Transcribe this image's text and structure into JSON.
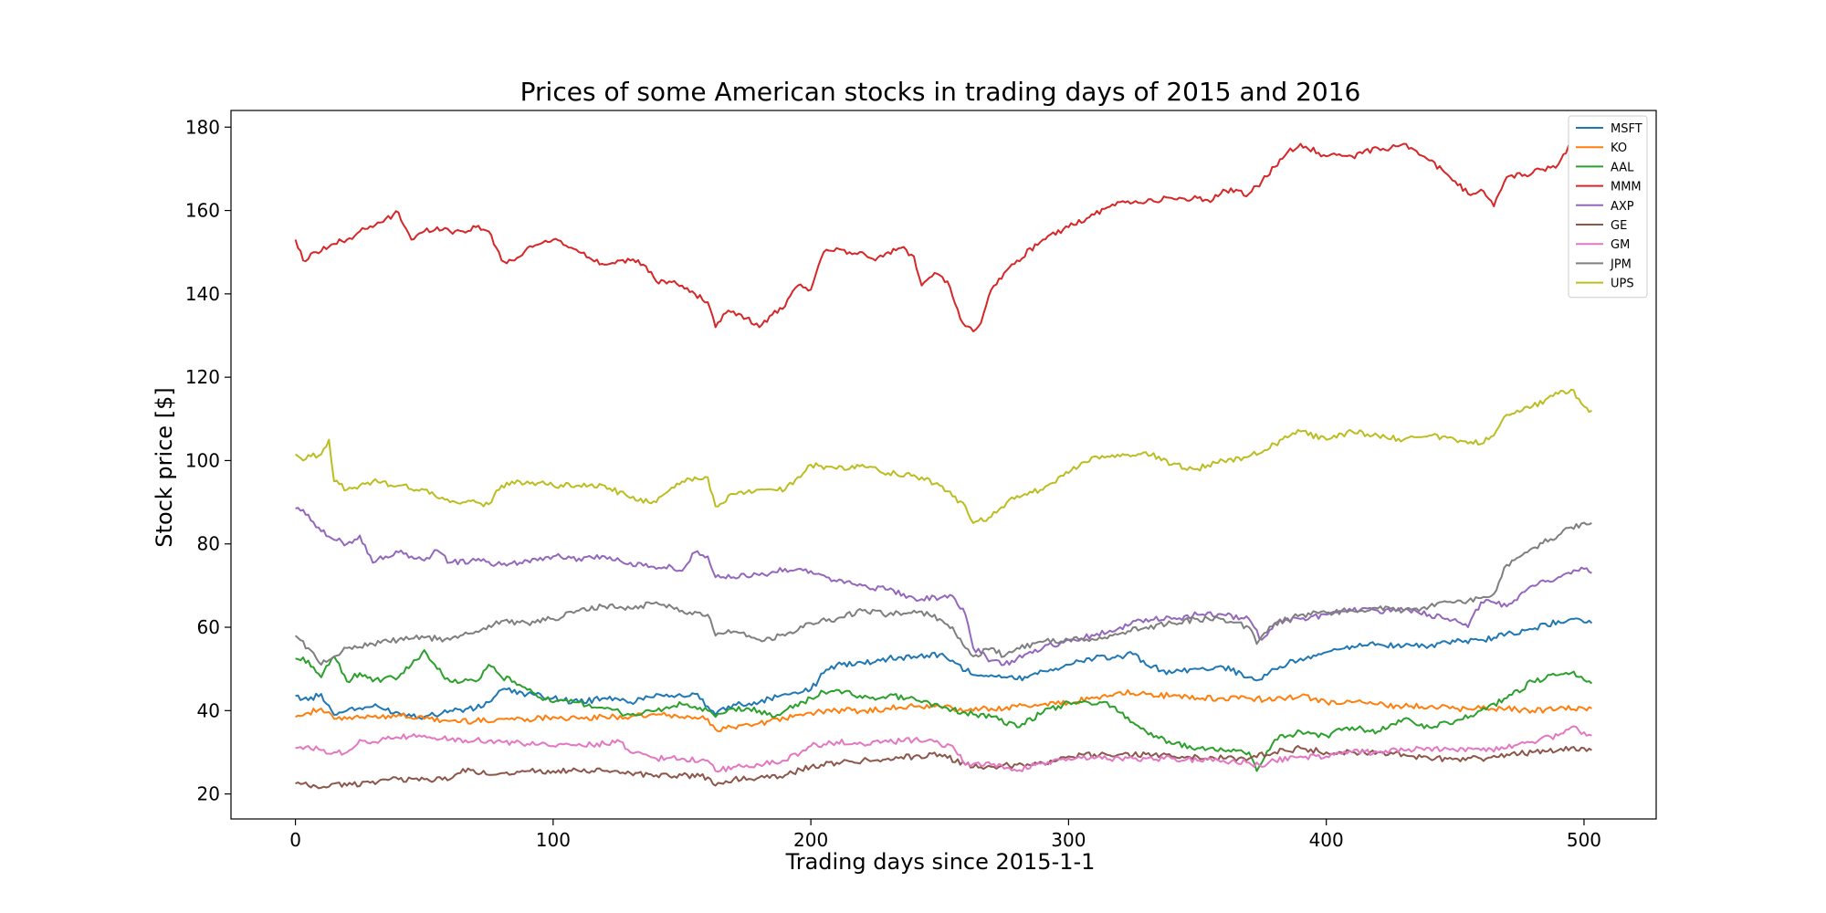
{
  "chart_data": {
    "type": "line",
    "title": "Prices of some American stocks in trading days of 2015 and 2016",
    "xlabel": "Trading days since 2015-1-1",
    "ylabel": "Stock price [$]",
    "xlim": [
      -25,
      528
    ],
    "ylim": [
      14,
      184
    ],
    "xticks": [
      0,
      100,
      200,
      300,
      400,
      500
    ],
    "yticks": [
      20,
      40,
      60,
      80,
      100,
      120,
      140,
      160,
      180
    ],
    "grid": false,
    "legend_position": "top-right",
    "series": [
      {
        "name": "MSFT",
        "color": "#1f77b4",
        "x": [
          0,
          5,
          10,
          15,
          20,
          30,
          40,
          50,
          60,
          70,
          75,
          80,
          90,
          100,
          110,
          120,
          130,
          140,
          150,
          155,
          160,
          163,
          170,
          180,
          190,
          200,
          205,
          210,
          220,
          230,
          240,
          250,
          255,
          260,
          270,
          280,
          290,
          300,
          310,
          320,
          325,
          330,
          340,
          350,
          360,
          370,
          375,
          380,
          390,
          400,
          410,
          420,
          430,
          440,
          450,
          460,
          465,
          470,
          480,
          490,
          495,
          503
        ],
        "y": [
          43.5,
          42.5,
          44,
          39,
          40,
          41,
          39.5,
          38.5,
          40,
          40.5,
          42,
          45,
          44,
          43,
          42,
          43,
          42,
          44,
          43.5,
          44,
          41,
          39,
          41.5,
          42,
          44,
          45,
          49,
          51,
          51.5,
          52.5,
          53,
          53.5,
          52,
          49.5,
          48.5,
          47.5,
          49.5,
          51,
          52.5,
          53,
          53.5,
          51,
          49,
          50,
          50.5,
          48,
          47.5,
          50,
          52.5,
          54,
          55.5,
          56,
          55.5,
          55.5,
          56.5,
          57,
          57.5,
          58.5,
          59.5,
          61.5,
          62,
          61
        ]
      },
      {
        "name": "KO",
        "color": "#ff7f0e",
        "x": [
          0,
          5,
          10,
          15,
          20,
          30,
          40,
          50,
          60,
          70,
          80,
          90,
          100,
          110,
          120,
          130,
          140,
          150,
          160,
          163,
          170,
          180,
          190,
          200,
          210,
          220,
          230,
          240,
          250,
          260,
          270,
          280,
          290,
          300,
          310,
          320,
          330,
          340,
          350,
          360,
          370,
          380,
          390,
          400,
          410,
          420,
          430,
          440,
          450,
          460,
          470,
          480,
          490,
          500,
          503
        ],
        "y": [
          38.5,
          39.5,
          40.5,
          38,
          38,
          38.5,
          39,
          38,
          37.5,
          37.5,
          38,
          38,
          38.5,
          38,
          38.5,
          38.5,
          39,
          38.5,
          38,
          35.5,
          36,
          37,
          38,
          39.5,
          40,
          40,
          40.5,
          41,
          41,
          40,
          40.5,
          41,
          41.5,
          42,
          43,
          44.5,
          44,
          43.5,
          43,
          43,
          43,
          42.5,
          43.5,
          42,
          42,
          41.5,
          41,
          41,
          40.5,
          40.5,
          40.5,
          40,
          40.5,
          40.5,
          40.5
        ]
      },
      {
        "name": "AAL",
        "color": "#2ca02c",
        "x": [
          0,
          5,
          10,
          15,
          20,
          25,
          30,
          40,
          45,
          50,
          55,
          60,
          70,
          75,
          80,
          85,
          90,
          100,
          110,
          120,
          130,
          140,
          150,
          160,
          163,
          170,
          180,
          185,
          190,
          200,
          205,
          210,
          220,
          230,
          240,
          250,
          260,
          270,
          280,
          290,
          300,
          310,
          315,
          320,
          330,
          340,
          350,
          360,
          370,
          373,
          380,
          390,
          400,
          410,
          420,
          430,
          440,
          450,
          460,
          470,
          480,
          490,
          495,
          503
        ],
        "y": [
          52.5,
          52,
          48,
          53,
          47,
          49,
          47,
          48,
          51,
          54.5,
          50,
          47,
          47,
          51,
          48,
          47,
          45,
          42,
          42,
          40.5,
          39,
          40,
          41.5,
          40,
          38.5,
          40.5,
          40,
          38.5,
          40,
          43,
          44.5,
          45,
          43,
          43.5,
          43,
          41,
          39.5,
          38.5,
          36,
          39.5,
          42,
          41.5,
          42,
          39.5,
          35,
          32,
          31,
          30.5,
          30,
          25.5,
          33,
          35,
          34,
          36,
          35,
          38,
          36,
          37.5,
          40,
          43,
          47,
          48.5,
          49,
          46.5
        ]
      },
      {
        "name": "MMM",
        "color": "#d62728",
        "x": [
          0,
          3,
          8,
          15,
          20,
          25,
          30,
          35,
          40,
          45,
          50,
          55,
          60,
          65,
          70,
          75,
          80,
          85,
          90,
          95,
          100,
          110,
          120,
          125,
          130,
          135,
          140,
          145,
          150,
          155,
          160,
          163,
          168,
          173,
          180,
          185,
          190,
          195,
          200,
          205,
          210,
          215,
          220,
          225,
          230,
          235,
          240,
          243,
          248,
          253,
          258,
          263,
          266,
          270,
          275,
          280,
          290,
          300,
          310,
          320,
          330,
          340,
          350,
          355,
          360,
          370,
          375,
          385,
          390,
          400,
          410,
          420,
          425,
          430,
          440,
          450,
          455,
          460,
          465,
          470,
          480,
          490,
          495,
          503
        ],
        "y": [
          153,
          148,
          150,
          152,
          153,
          155,
          156,
          158,
          159.5,
          153,
          155,
          156,
          155,
          155,
          156,
          155,
          148,
          148,
          151,
          152,
          153,
          150,
          147,
          148,
          148,
          147,
          143,
          143,
          142,
          140,
          138,
          132,
          136,
          135,
          132,
          135,
          137,
          142,
          141,
          150,
          151,
          150,
          150,
          148,
          150,
          151,
          149,
          142,
          145,
          143,
          134,
          131,
          133,
          141,
          145,
          148,
          153,
          156,
          159,
          162,
          162,
          163,
          163,
          162,
          165,
          164,
          167,
          174,
          176,
          173,
          173,
          175,
          175,
          176,
          172,
          167,
          164,
          165,
          161,
          168,
          169,
          171,
          176,
          175
        ]
      },
      {
        "name": "AXP",
        "color": "#9467bd",
        "x": [
          0,
          5,
          10,
          15,
          20,
          25,
          30,
          35,
          40,
          45,
          50,
          55,
          60,
          70,
          80,
          90,
          100,
          110,
          120,
          130,
          140,
          145,
          150,
          155,
          160,
          163,
          170,
          180,
          190,
          200,
          210,
          220,
          230,
          240,
          250,
          255,
          260,
          263,
          270,
          275,
          280,
          290,
          300,
          310,
          320,
          330,
          340,
          350,
          360,
          370,
          375,
          380,
          390,
          400,
          410,
          420,
          430,
          440,
          450,
          455,
          460,
          465,
          470,
          480,
          490,
          500,
          503
        ],
        "y": [
          88.5,
          87,
          83,
          81,
          80,
          82,
          75.5,
          77,
          78,
          77,
          76,
          78.5,
          75.5,
          76,
          75,
          76,
          77,
          76.5,
          77,
          75.5,
          74,
          75,
          73.5,
          78,
          77,
          72,
          72,
          72.5,
          74,
          73.5,
          71,
          70,
          69,
          67,
          67,
          67.5,
          63,
          55,
          52,
          51,
          52.5,
          55,
          57,
          58,
          60,
          62,
          62,
          63,
          63,
          62,
          57,
          61,
          62,
          63,
          64,
          64,
          64,
          63,
          62,
          60,
          66,
          66,
          65,
          70,
          72,
          74,
          73
        ]
      },
      {
        "name": "GE",
        "color": "#8c564b",
        "x": [
          0,
          5,
          10,
          15,
          20,
          30,
          40,
          50,
          60,
          65,
          70,
          80,
          90,
          100,
          110,
          120,
          130,
          140,
          150,
          160,
          163,
          170,
          180,
          190,
          200,
          210,
          220,
          230,
          240,
          250,
          260,
          270,
          280,
          290,
          300,
          310,
          320,
          330,
          340,
          350,
          360,
          370,
          380,
          390,
          400,
          410,
          420,
          430,
          440,
          450,
          460,
          470,
          480,
          490,
          500,
          503
        ],
        "y": [
          22.5,
          22,
          21.5,
          22.5,
          22,
          23,
          23.5,
          23.5,
          23.5,
          26,
          25,
          25,
          25.5,
          25.5,
          25.5,
          25.5,
          25,
          24.5,
          24.5,
          24,
          22,
          23.5,
          24,
          24.5,
          26.5,
          27.5,
          28,
          28.5,
          29,
          29.5,
          27,
          26.5,
          27,
          27.5,
          29,
          29.5,
          29.5,
          29.5,
          29,
          29,
          28.5,
          28.5,
          30,
          31,
          30,
          30,
          30,
          29.5,
          28.5,
          28.5,
          28.5,
          29.5,
          30,
          30.5,
          31,
          30.5
        ]
      },
      {
        "name": "GM",
        "color": "#e377c2",
        "x": [
          0,
          5,
          10,
          15,
          20,
          25,
          30,
          40,
          50,
          60,
          70,
          80,
          90,
          100,
          110,
          120,
          125,
          130,
          140,
          150,
          160,
          163,
          170,
          180,
          190,
          200,
          210,
          220,
          230,
          240,
          250,
          255,
          260,
          270,
          280,
          290,
          300,
          310,
          320,
          330,
          340,
          350,
          360,
          370,
          375,
          380,
          390,
          400,
          410,
          420,
          430,
          440,
          450,
          460,
          470,
          480,
          490,
          495,
          503
        ],
        "y": [
          31,
          31.5,
          30.5,
          30,
          30,
          33,
          32.5,
          33.5,
          34,
          33,
          33,
          32.5,
          32,
          31.5,
          32,
          32,
          33,
          30,
          28.5,
          28.5,
          28,
          25.5,
          26.5,
          27,
          28,
          31.5,
          32.5,
          32,
          32.5,
          33,
          32,
          31.5,
          27,
          27,
          25.5,
          27.5,
          28.5,
          28.5,
          28.5,
          28.5,
          28.5,
          28,
          28,
          27.5,
          26.5,
          28,
          29,
          29,
          30,
          30,
          30.5,
          31,
          30.5,
          30.5,
          31,
          32.5,
          34,
          36,
          34
        ]
      },
      {
        "name": "JPM",
        "color": "#7f7f7f",
        "x": [
          0,
          5,
          10,
          15,
          20,
          30,
          40,
          50,
          60,
          70,
          80,
          90,
          100,
          110,
          120,
          130,
          140,
          150,
          160,
          163,
          170,
          180,
          190,
          200,
          210,
          220,
          230,
          240,
          250,
          255,
          260,
          263,
          270,
          275,
          280,
          290,
          300,
          310,
          320,
          330,
          340,
          350,
          360,
          370,
          373,
          380,
          390,
          400,
          410,
          420,
          430,
          440,
          450,
          460,
          465,
          470,
          480,
          490,
          495,
          503
        ],
        "y": [
          58,
          55,
          51,
          53,
          55,
          56,
          57,
          57.5,
          57,
          59,
          61.5,
          61,
          62,
          64,
          65,
          64.5,
          66,
          64,
          63,
          58,
          59,
          57,
          58,
          61,
          62,
          64,
          63,
          64,
          62,
          60,
          55,
          53,
          55,
          53,
          55,
          56.5,
          57,
          57,
          58.5,
          60,
          61,
          62,
          62,
          60,
          56,
          61,
          63,
          63.5,
          64,
          64.5,
          64,
          65,
          66,
          67,
          68,
          75,
          79,
          82,
          84,
          85
        ]
      },
      {
        "name": "UPS",
        "color": "#bcbd22",
        "x": [
          0,
          3,
          6,
          10,
          13,
          15,
          20,
          25,
          30,
          40,
          50,
          60,
          65,
          70,
          75,
          80,
          90,
          100,
          110,
          120,
          130,
          140,
          150,
          155,
          160,
          163,
          170,
          180,
          190,
          200,
          210,
          220,
          230,
          240,
          250,
          260,
          263,
          270,
          280,
          290,
          300,
          310,
          320,
          330,
          340,
          350,
          360,
          370,
          380,
          390,
          400,
          410,
          420,
          430,
          440,
          450,
          460,
          465,
          470,
          480,
          490,
          495,
          500,
          503
        ],
        "y": [
          101.5,
          100,
          101,
          101.5,
          105,
          95,
          93,
          94,
          95,
          94,
          93,
          90,
          90,
          90,
          89.5,
          94,
          95,
          94,
          94,
          94,
          91,
          90,
          95,
          96,
          96,
          89,
          92,
          93,
          93,
          99,
          98,
          99,
          97,
          96.5,
          94,
          89,
          85,
          86.5,
          91.5,
          93,
          97,
          101,
          101,
          102,
          99,
          98,
          100,
          101,
          104,
          107,
          105,
          107,
          106,
          105,
          106,
          105,
          104,
          106,
          111,
          113,
          116,
          117,
          113,
          112
        ]
      }
    ]
  }
}
